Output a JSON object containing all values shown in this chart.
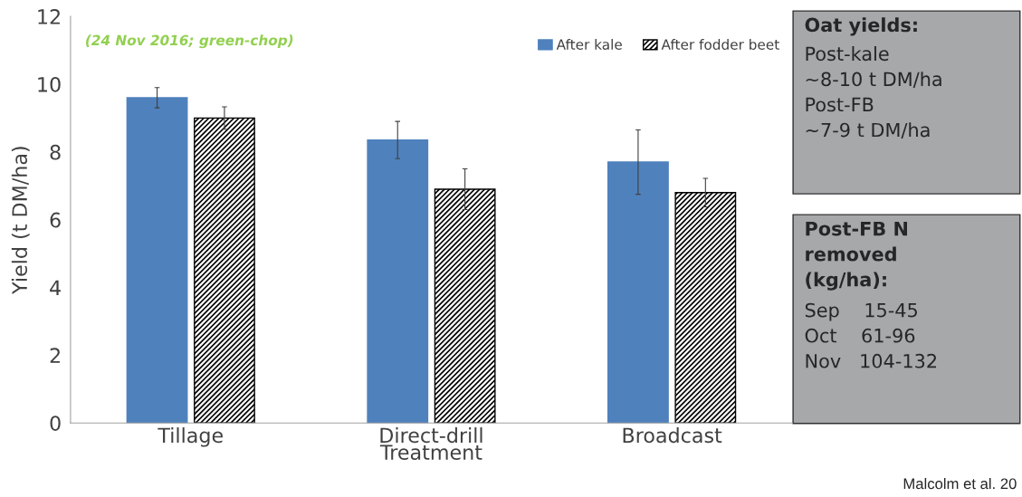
{
  "chart_data": {
    "type": "bar",
    "categories": [
      "Tillage",
      "Direct-drill",
      "Broadcast"
    ],
    "xlabel": "Treatment",
    "ylabel": "Yield (t DM/ha)",
    "series": [
      {
        "name": "After kale",
        "color": "#4f81bd",
        "values": [
          9.6,
          8.35,
          7.7
        ],
        "errors": [
          0.3,
          0.55,
          0.95
        ]
      },
      {
        "name": "After fodder beet",
        "color": "#000000",
        "values": [
          9.0,
          6.9,
          6.8
        ],
        "errors": [
          0.33,
          0.6,
          0.42
        ]
      }
    ],
    "ylim": [
      0,
      12
    ],
    "yticks": [
      0,
      2,
      4,
      6,
      8,
      10,
      12
    ],
    "grid": false,
    "legend": "top right",
    "annotations": [
      "(24 Nov 2016; green-chop)",
      "Oat yields:\nPost-kale\n~8-10 t DM/ha\nPost-FB\n~7-9 t DM/ha",
      "Post-FB N\nremoved\n(kg/ha):\nSep    15-45\nOct    61-96\nNov   104-132",
      "Malcolm et al. 20"
    ]
  }
}
